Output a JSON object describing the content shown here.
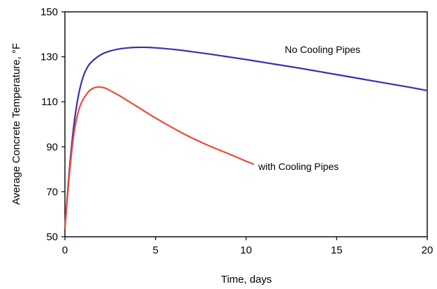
{
  "chart_data": {
    "type": "line",
    "title": "",
    "xlabel": "Time, days",
    "ylabel": "Average Concrete Temperature, °F",
    "xlim": [
      0,
      20
    ],
    "ylim": [
      50,
      150
    ],
    "x_ticks": [
      0,
      5,
      10,
      15,
      20
    ],
    "y_ticks": [
      50,
      70,
      90,
      110,
      130,
      150
    ],
    "x_tick_labels": [
      "0",
      "5",
      "10",
      "15",
      "20"
    ],
    "y_tick_labels": [
      "50",
      "70",
      "90",
      "110",
      "130",
      "150"
    ],
    "grid": false,
    "legend": "none",
    "annotations": [
      {
        "text": "No Cooling Pipes",
        "series": 0
      },
      {
        "text": "with Cooling Pipes",
        "series": 1
      }
    ],
    "series": [
      {
        "color": "#3a2fb0",
        "x": [
          0,
          0.25,
          0.5,
          0.75,
          1.0,
          1.25,
          1.5,
          2.0,
          2.5,
          3.0,
          3.5,
          4.0,
          4.5,
          5.0,
          6.0,
          7.0,
          8.0,
          9.0,
          10.0,
          11.0,
          12.0,
          13.0,
          14.0,
          15.0,
          16.0,
          17.0,
          18.0,
          19.0,
          20.0
        ],
        "y": [
          54,
          80,
          100,
          113,
          121,
          125.5,
          128,
          131,
          132.6,
          133.5,
          134.0,
          134.2,
          134.2,
          134.0,
          133.3,
          132.3,
          131.2,
          130.0,
          128.8,
          127.5,
          126.2,
          124.9,
          123.5,
          122.1,
          120.7,
          119.3,
          117.9,
          116.5,
          115
        ]
      },
      {
        "color": "#ee4a30",
        "x": [
          0,
          0.25,
          0.5,
          0.75,
          1.0,
          1.25,
          1.5,
          1.75,
          2.0,
          2.25,
          2.5,
          3.0,
          3.5,
          4.0,
          5.0,
          6.0,
          7.0,
          8.0,
          9.0,
          10.0,
          10.4
        ],
        "y": [
          54,
          78,
          96,
          106,
          111,
          114,
          115.8,
          116.5,
          116.5,
          116,
          115,
          112.8,
          110.3,
          107.8,
          102.8,
          98.2,
          94,
          90.3,
          87,
          83.6,
          82.3
        ]
      }
    ]
  }
}
